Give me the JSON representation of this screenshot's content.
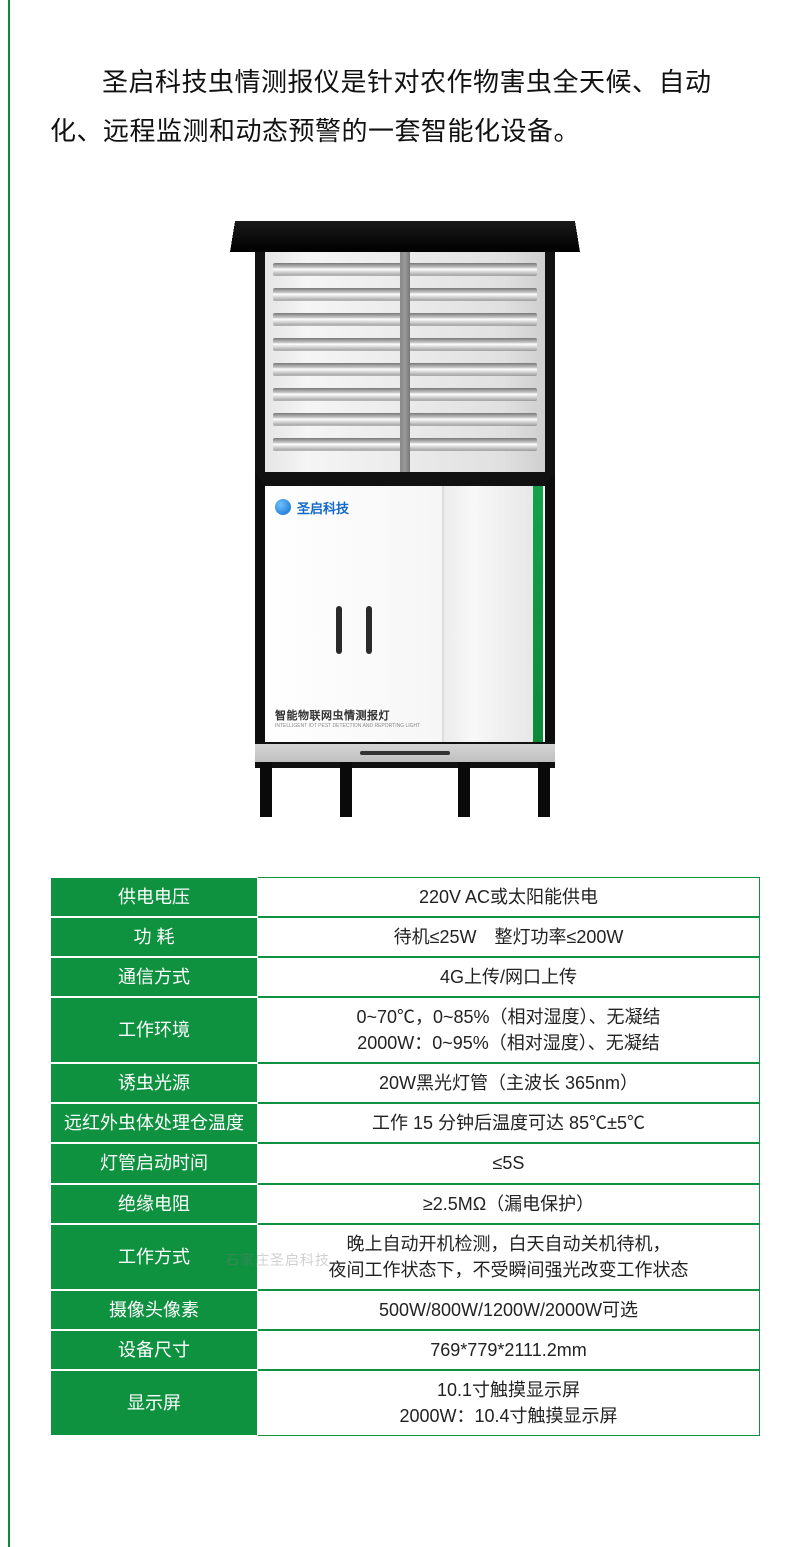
{
  "intro_text": "圣启科技虫情测报仪是针对农作物害虫全天候、自动化、远程监测和动态预警的一套智能化设备。",
  "device": {
    "logo_text": "圣启科技",
    "product_label_cn": "智能物联网虫情测报灯",
    "product_label_en": "INTELLIGENT IOT PEST DETECTION AND REPORTING LIGHT"
  },
  "watermark": "石家庄圣启科技",
  "spec_table": {
    "type": "table",
    "label_bg_color": "#0e9240",
    "label_text_color": "#ffffff",
    "value_text_color": "#222222",
    "value_border_color": "#0e9240",
    "font_size": 18,
    "rows": [
      {
        "label": "供电电压",
        "value": "220V AC或太阳能供电"
      },
      {
        "label": "功 耗",
        "value": "待机≤25W　整灯功率≤200W"
      },
      {
        "label": "通信方式",
        "value": "4G上传/网口上传"
      },
      {
        "label": "工作环境",
        "value": "0~70℃，0~85%（相对湿度）、无凝结\n2000W：0~95%（相对湿度）、无凝结"
      },
      {
        "label": "诱虫光源",
        "value": "20W黑光灯管（主波长 365nm）"
      },
      {
        "label": "远红外虫体处理仓温度",
        "value": "工作 15 分钟后温度可达 85℃±5℃"
      },
      {
        "label": "灯管启动时间",
        "value": "≤5S"
      },
      {
        "label": "绝缘电阻",
        "value": "≥2.5MΩ（漏电保护）"
      },
      {
        "label": "工作方式",
        "value": "晚上自动开机检测，白天自动关机待机，\n夜间工作状态下，不受瞬间强光改变工作状态"
      },
      {
        "label": "摄像头像素",
        "value": "500W/800W/1200W/2000W可选"
      },
      {
        "label": "设备尺寸",
        "value": "769*779*2111.2mm"
      },
      {
        "label": "显示屏",
        "value": "10.1寸触摸显示屏\n2000W：10.4寸触摸显示屏"
      }
    ]
  }
}
